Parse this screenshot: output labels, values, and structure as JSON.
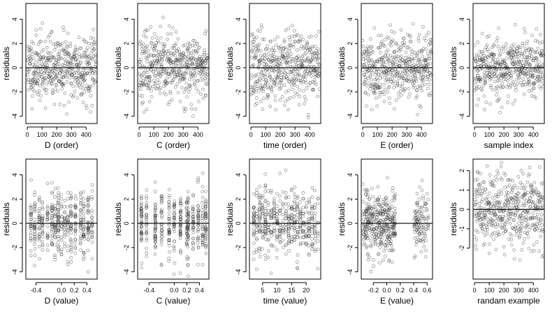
{
  "colors": {
    "background": "#ffffff",
    "points": "#323232",
    "lines": "#000000"
  },
  "chart_data": [
    {
      "type": "scatter",
      "panel": "r1c1",
      "xlabel": "D (order)",
      "ylabel": "residuals",
      "xlim": [
        -10,
        475
      ],
      "ylim": [
        -4.6,
        5.3
      ],
      "xticks": [
        0,
        100,
        200,
        300,
        400
      ],
      "yticks": [
        -4,
        -2,
        0,
        2,
        4
      ],
      "hline": 0,
      "generator": {
        "kind": "index",
        "n": 470,
        "seed": 11,
        "spread": 1.35
      }
    },
    {
      "type": "scatter",
      "panel": "r1c2",
      "xlabel": "C (order)",
      "ylabel": "residuals",
      "xlim": [
        -10,
        475
      ],
      "ylim": [
        -4.6,
        5.3
      ],
      "xticks": [
        0,
        100,
        200,
        300,
        400
      ],
      "yticks": [
        -4,
        -2,
        0,
        2,
        4
      ],
      "hline": 0,
      "generator": {
        "kind": "index",
        "n": 470,
        "seed": 23,
        "spread": 1.35
      }
    },
    {
      "type": "scatter",
      "panel": "r1c3",
      "xlabel": "time (order)",
      "ylabel": "residuals",
      "xlim": [
        -10,
        475
      ],
      "ylim": [
        -4.6,
        5.3
      ],
      "xticks": [
        0,
        100,
        200,
        300,
        400
      ],
      "yticks": [
        -4,
        -2,
        0,
        2,
        4
      ],
      "hline": 0,
      "generator": {
        "kind": "index",
        "n": 470,
        "seed": 37,
        "spread": 1.45
      }
    },
    {
      "type": "scatter",
      "panel": "r1c4",
      "xlabel": "E (order)",
      "ylabel": "residuals",
      "xlim": [
        -10,
        475
      ],
      "ylim": [
        -4.6,
        5.3
      ],
      "xticks": [
        0,
        100,
        200,
        300,
        400
      ],
      "yticks": [
        -4,
        -2,
        0,
        2,
        4
      ],
      "hline": 0,
      "generator": {
        "kind": "index",
        "n": 470,
        "seed": 41,
        "spread": 1.35
      }
    },
    {
      "type": "scatter",
      "panel": "r1c5",
      "xlabel": "sample index",
      "ylabel": "residuals",
      "xlim": [
        -10,
        475
      ],
      "ylim": [
        -4.6,
        5.3
      ],
      "xticks": [
        0,
        100,
        200,
        300,
        400
      ],
      "yticks": [
        -4,
        -2,
        0,
        2,
        4
      ],
      "hline": 0,
      "generator": {
        "kind": "index",
        "n": 470,
        "seed": 53,
        "spread": 1.3
      }
    },
    {
      "type": "scatter",
      "panel": "r2c1",
      "xlabel": "D (value)",
      "ylabel": "residuals",
      "xlim": [
        -0.56,
        0.56
      ],
      "ylim": [
        -4.6,
        5.3
      ],
      "xticks": [
        -0.4,
        0.0,
        0.2,
        0.4
      ],
      "xtick_labels": [
        "-0.4",
        "0.0",
        "0.2",
        "0.4"
      ],
      "yticks": [
        -4,
        -2,
        0,
        2,
        4
      ],
      "hline": 0,
      "generator": {
        "kind": "columns",
        "n": 470,
        "seed": 61,
        "spread": 1.35,
        "columns": [
          -0.48,
          -0.42,
          -0.35,
          -0.3,
          -0.22,
          -0.15,
          -0.1,
          -0.05,
          0.0,
          0.05,
          0.1,
          0.15,
          0.22,
          0.3,
          0.35,
          0.42,
          0.48
        ]
      }
    },
    {
      "type": "scatter",
      "panel": "r2c2",
      "xlabel": "C (value)",
      "ylabel": "residuals",
      "xlim": [
        -0.58,
        0.55
      ],
      "ylim": [
        -4.6,
        5.3
      ],
      "xticks": [
        -0.4,
        0.0,
        0.2,
        0.4
      ],
      "xtick_labels": [
        "-0.4",
        "0.0",
        "0.2",
        "0.4"
      ],
      "yticks": [
        -4,
        -2,
        0,
        2,
        4
      ],
      "hline": 0,
      "generator": {
        "kind": "columns",
        "n": 470,
        "seed": 73,
        "spread": 1.35,
        "columns": [
          -0.52,
          -0.44,
          -0.3,
          -0.2,
          -0.08,
          0.0,
          0.1,
          0.2,
          0.22,
          0.3,
          0.38,
          0.45,
          0.5
        ]
      }
    },
    {
      "type": "scatter",
      "panel": "r2c3",
      "xlabel": "time (value)",
      "ylabel": "residuals",
      "xlim": [
        0.5,
        25
      ],
      "ylim": [
        -4.6,
        5.3
      ],
      "xticks": [
        5,
        10,
        15,
        20
      ],
      "yticks": [
        -4,
        -2,
        0,
        2,
        4
      ],
      "hline": 0,
      "generator": {
        "kind": "columns",
        "n": 470,
        "seed": 89,
        "spread": 1.45,
        "columns": [
          2,
          3,
          4,
          5,
          6,
          7,
          8,
          9,
          10,
          11,
          12,
          13,
          14,
          15,
          16,
          17,
          18,
          19,
          20,
          21,
          22,
          23,
          24
        ]
      }
    },
    {
      "type": "scatter",
      "panel": "r2c4",
      "xlabel": "E (value)",
      "ylabel": "residuals",
      "xlim": [
        -0.38,
        0.68
      ],
      "ylim": [
        -4.6,
        5.3
      ],
      "xticks": [
        -0.2,
        0.0,
        0.2,
        0.4,
        0.6
      ],
      "xtick_labels": [
        "-0.2",
        "0.0",
        "0.2",
        "0.4",
        "0.6"
      ],
      "yticks": [
        -4,
        -2,
        0,
        2,
        4
      ],
      "hline": 0,
      "generator": {
        "kind": "clusters",
        "n": 470,
        "seed": 97,
        "spread": 1.35,
        "clusters": [
          [
            -0.36,
            0.13,
            0.8
          ],
          [
            0.4,
            0.62,
            0.2
          ]
        ]
      }
    },
    {
      "type": "scatter",
      "panel": "r2c5",
      "xlabel": "randam example",
      "ylabel": "residuals",
      "xlim": [
        -10,
        475
      ],
      "ylim": [
        -3.6,
        2.6
      ],
      "xticks": [
        0,
        100,
        200,
        300,
        400
      ],
      "yticks": [
        -2,
        -1,
        0,
        1,
        2
      ],
      "hline": 0,
      "generator": {
        "kind": "index",
        "n": 470,
        "seed": 101,
        "spread": 0.95
      }
    }
  ]
}
